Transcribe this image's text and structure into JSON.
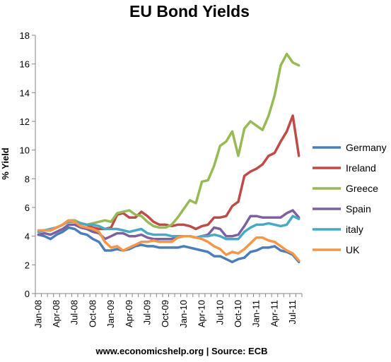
{
  "chart_data": {
    "type": "line",
    "title": "EU Bond Yields",
    "xlabel": "",
    "ylabel": "% Yield",
    "ylim": [
      0,
      18
    ],
    "yticks": [
      0,
      2,
      4,
      6,
      8,
      10,
      12,
      14,
      16,
      18
    ],
    "grid": false,
    "legend_position": "right",
    "footer": "www.economicshelp.org | Source: ECB",
    "x_tick_labels": [
      "Jan-08",
      "Apr-08",
      "Jul-08",
      "Oct-08",
      "Jan-09",
      "Apr-09",
      "Jul-09",
      "Oct-09",
      "Jan-10",
      "Apr-10",
      "Jul-10",
      "Oct-10",
      "Jan-11",
      "Apr-11",
      "Jul-11"
    ],
    "x": [
      "2008-01",
      "2008-02",
      "2008-03",
      "2008-04",
      "2008-05",
      "2008-06",
      "2008-07",
      "2008-08",
      "2008-09",
      "2008-10",
      "2008-11",
      "2008-12",
      "2009-01",
      "2009-02",
      "2009-03",
      "2009-04",
      "2009-05",
      "2009-06",
      "2009-07",
      "2009-08",
      "2009-09",
      "2009-10",
      "2009-11",
      "2009-12",
      "2010-01",
      "2010-02",
      "2010-03",
      "2010-04",
      "2010-05",
      "2010-06",
      "2010-07",
      "2010-08",
      "2010-09",
      "2010-10",
      "2010-11",
      "2010-12",
      "2011-01",
      "2011-02",
      "2011-03",
      "2011-04",
      "2011-05",
      "2011-06",
      "2011-07",
      "2011-08"
    ],
    "series": [
      {
        "name": "Germany",
        "color": "#4a7ebb",
        "values": [
          4.1,
          4.0,
          3.8,
          4.1,
          4.3,
          4.6,
          4.5,
          4.2,
          4.1,
          3.8,
          3.6,
          3.0,
          3.0,
          3.1,
          3.0,
          3.1,
          3.3,
          3.4,
          3.3,
          3.3,
          3.2,
          3.2,
          3.2,
          3.2,
          3.3,
          3.2,
          3.1,
          3.0,
          2.9,
          2.6,
          2.6,
          2.4,
          2.2,
          2.4,
          2.5,
          2.9,
          3.0,
          3.2,
          3.2,
          3.3,
          3.0,
          2.9,
          2.7,
          2.2
        ]
      },
      {
        "name": "Ireland",
        "color": "#be4b48",
        "values": [
          4.3,
          4.4,
          4.4,
          4.6,
          4.8,
          5.1,
          5.1,
          4.9,
          4.8,
          4.6,
          4.5,
          4.5,
          4.6,
          5.5,
          5.6,
          5.3,
          5.3,
          5.7,
          5.4,
          5.0,
          4.8,
          4.8,
          4.7,
          4.8,
          4.8,
          4.7,
          4.5,
          4.7,
          4.8,
          5.3,
          5.3,
          5.4,
          6.1,
          6.4,
          8.2,
          8.5,
          8.7,
          9.0,
          9.6,
          9.8,
          10.6,
          11.3,
          12.4,
          9.6
        ]
      },
      {
        "name": "Greece",
        "color": "#98b954",
        "values": [
          4.3,
          4.4,
          4.4,
          4.6,
          4.8,
          5.1,
          5.1,
          4.9,
          4.8,
          4.9,
          5.0,
          5.1,
          5.0,
          5.6,
          5.7,
          5.8,
          5.5,
          5.4,
          5.0,
          4.7,
          4.6,
          4.6,
          4.8,
          5.3,
          5.9,
          6.5,
          6.3,
          7.8,
          7.9,
          8.9,
          10.3,
          10.6,
          11.3,
          9.6,
          11.5,
          12.0,
          11.7,
          11.4,
          12.4,
          13.8,
          15.9,
          16.7,
          16.1,
          15.9
        ]
      },
      {
        "name": "Spain",
        "color": "#7d60a0",
        "values": [
          4.1,
          4.2,
          4.1,
          4.3,
          4.5,
          4.8,
          4.8,
          4.6,
          4.5,
          4.3,
          4.2,
          3.8,
          4.0,
          4.2,
          4.2,
          4.0,
          4.0,
          4.1,
          3.9,
          3.8,
          3.8,
          3.8,
          3.8,
          3.9,
          4.0,
          4.0,
          3.9,
          4.0,
          4.1,
          4.6,
          4.5,
          4.0,
          4.0,
          4.1,
          4.7,
          5.4,
          5.4,
          5.3,
          5.3,
          5.3,
          5.3,
          5.6,
          5.8,
          5.3
        ]
      },
      {
        "name": "italy",
        "color": "#46aac5",
        "values": [
          4.3,
          4.4,
          4.5,
          4.6,
          4.8,
          5.0,
          5.0,
          4.9,
          4.8,
          4.8,
          4.7,
          4.5,
          4.5,
          4.5,
          4.4,
          4.3,
          4.4,
          4.5,
          4.2,
          4.1,
          4.1,
          4.1,
          4.0,
          4.0,
          4.0,
          4.0,
          3.9,
          4.0,
          4.0,
          4.1,
          4.0,
          3.8,
          3.8,
          3.8,
          4.3,
          4.6,
          4.8,
          4.8,
          4.9,
          4.8,
          4.7,
          4.8,
          5.4,
          5.2
        ]
      },
      {
        "name": "UK",
        "color": "#f79646",
        "values": [
          4.4,
          4.4,
          4.4,
          4.6,
          4.8,
          5.1,
          5.0,
          4.7,
          4.6,
          4.5,
          4.3,
          3.6,
          3.2,
          3.3,
          3.0,
          3.2,
          3.4,
          3.6,
          3.6,
          3.7,
          3.6,
          3.6,
          3.6,
          3.9,
          4.0,
          4.0,
          3.9,
          3.8,
          3.6,
          3.3,
          3.1,
          2.7,
          2.9,
          2.8,
          3.1,
          3.5,
          3.9,
          3.9,
          3.7,
          3.6,
          3.3,
          3.0,
          2.8,
          2.3
        ]
      }
    ]
  }
}
